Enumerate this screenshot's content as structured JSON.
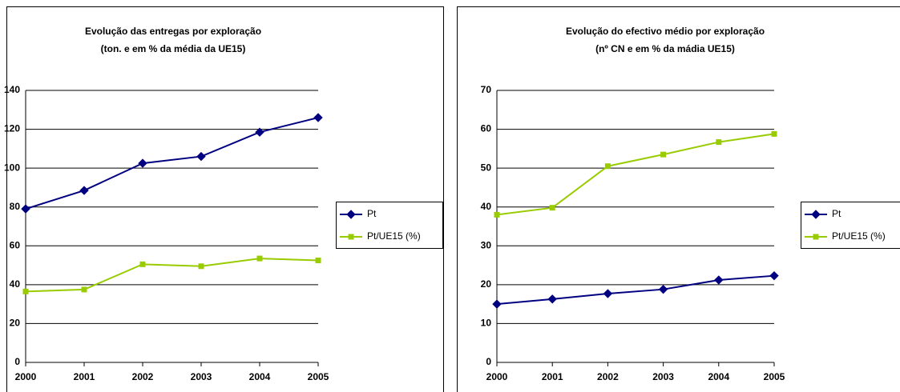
{
  "chart_data": [
    {
      "type": "line",
      "title": "Evolução das entregas por exploração",
      "subtitle": "(ton. e em % da média da UE15)",
      "categories": [
        "2000",
        "2001",
        "2002",
        "2003",
        "2004",
        "2005"
      ],
      "series": [
        {
          "name": "Pt",
          "color": "#000080",
          "marker": "diamond",
          "values": [
            79,
            88.5,
            102.5,
            106,
            118.5,
            126
          ]
        },
        {
          "name": "Pt/UE15 (%)",
          "color": "#99cc00",
          "marker": "square",
          "values": [
            36.5,
            37.5,
            50.5,
            49.5,
            53.5,
            52.5
          ]
        }
      ],
      "ylim": [
        0,
        140
      ],
      "yticks": [
        0,
        20,
        40,
        60,
        80,
        100,
        120,
        140
      ],
      "grid": true,
      "legend": "right"
    },
    {
      "type": "line",
      "title": "Evolução do efectivo médio por exploração",
      "subtitle": "(nº CN e em % da mádia UE15)",
      "categories": [
        "2000",
        "2001",
        "2002",
        "2003",
        "2004",
        "2005"
      ],
      "series": [
        {
          "name": "Pt",
          "color": "#000080",
          "marker": "diamond",
          "values": [
            15,
            16.3,
            17.7,
            18.8,
            21.2,
            22.3
          ]
        },
        {
          "name": "Pt/UE15 (%)",
          "color": "#99cc00",
          "marker": "square",
          "values": [
            38,
            39.8,
            50.5,
            53.5,
            56.7,
            58.8
          ]
        }
      ],
      "ylim": [
        0,
        70
      ],
      "yticks": [
        0,
        10,
        20,
        30,
        40,
        50,
        60,
        70
      ],
      "grid": true,
      "legend": "right"
    }
  ]
}
